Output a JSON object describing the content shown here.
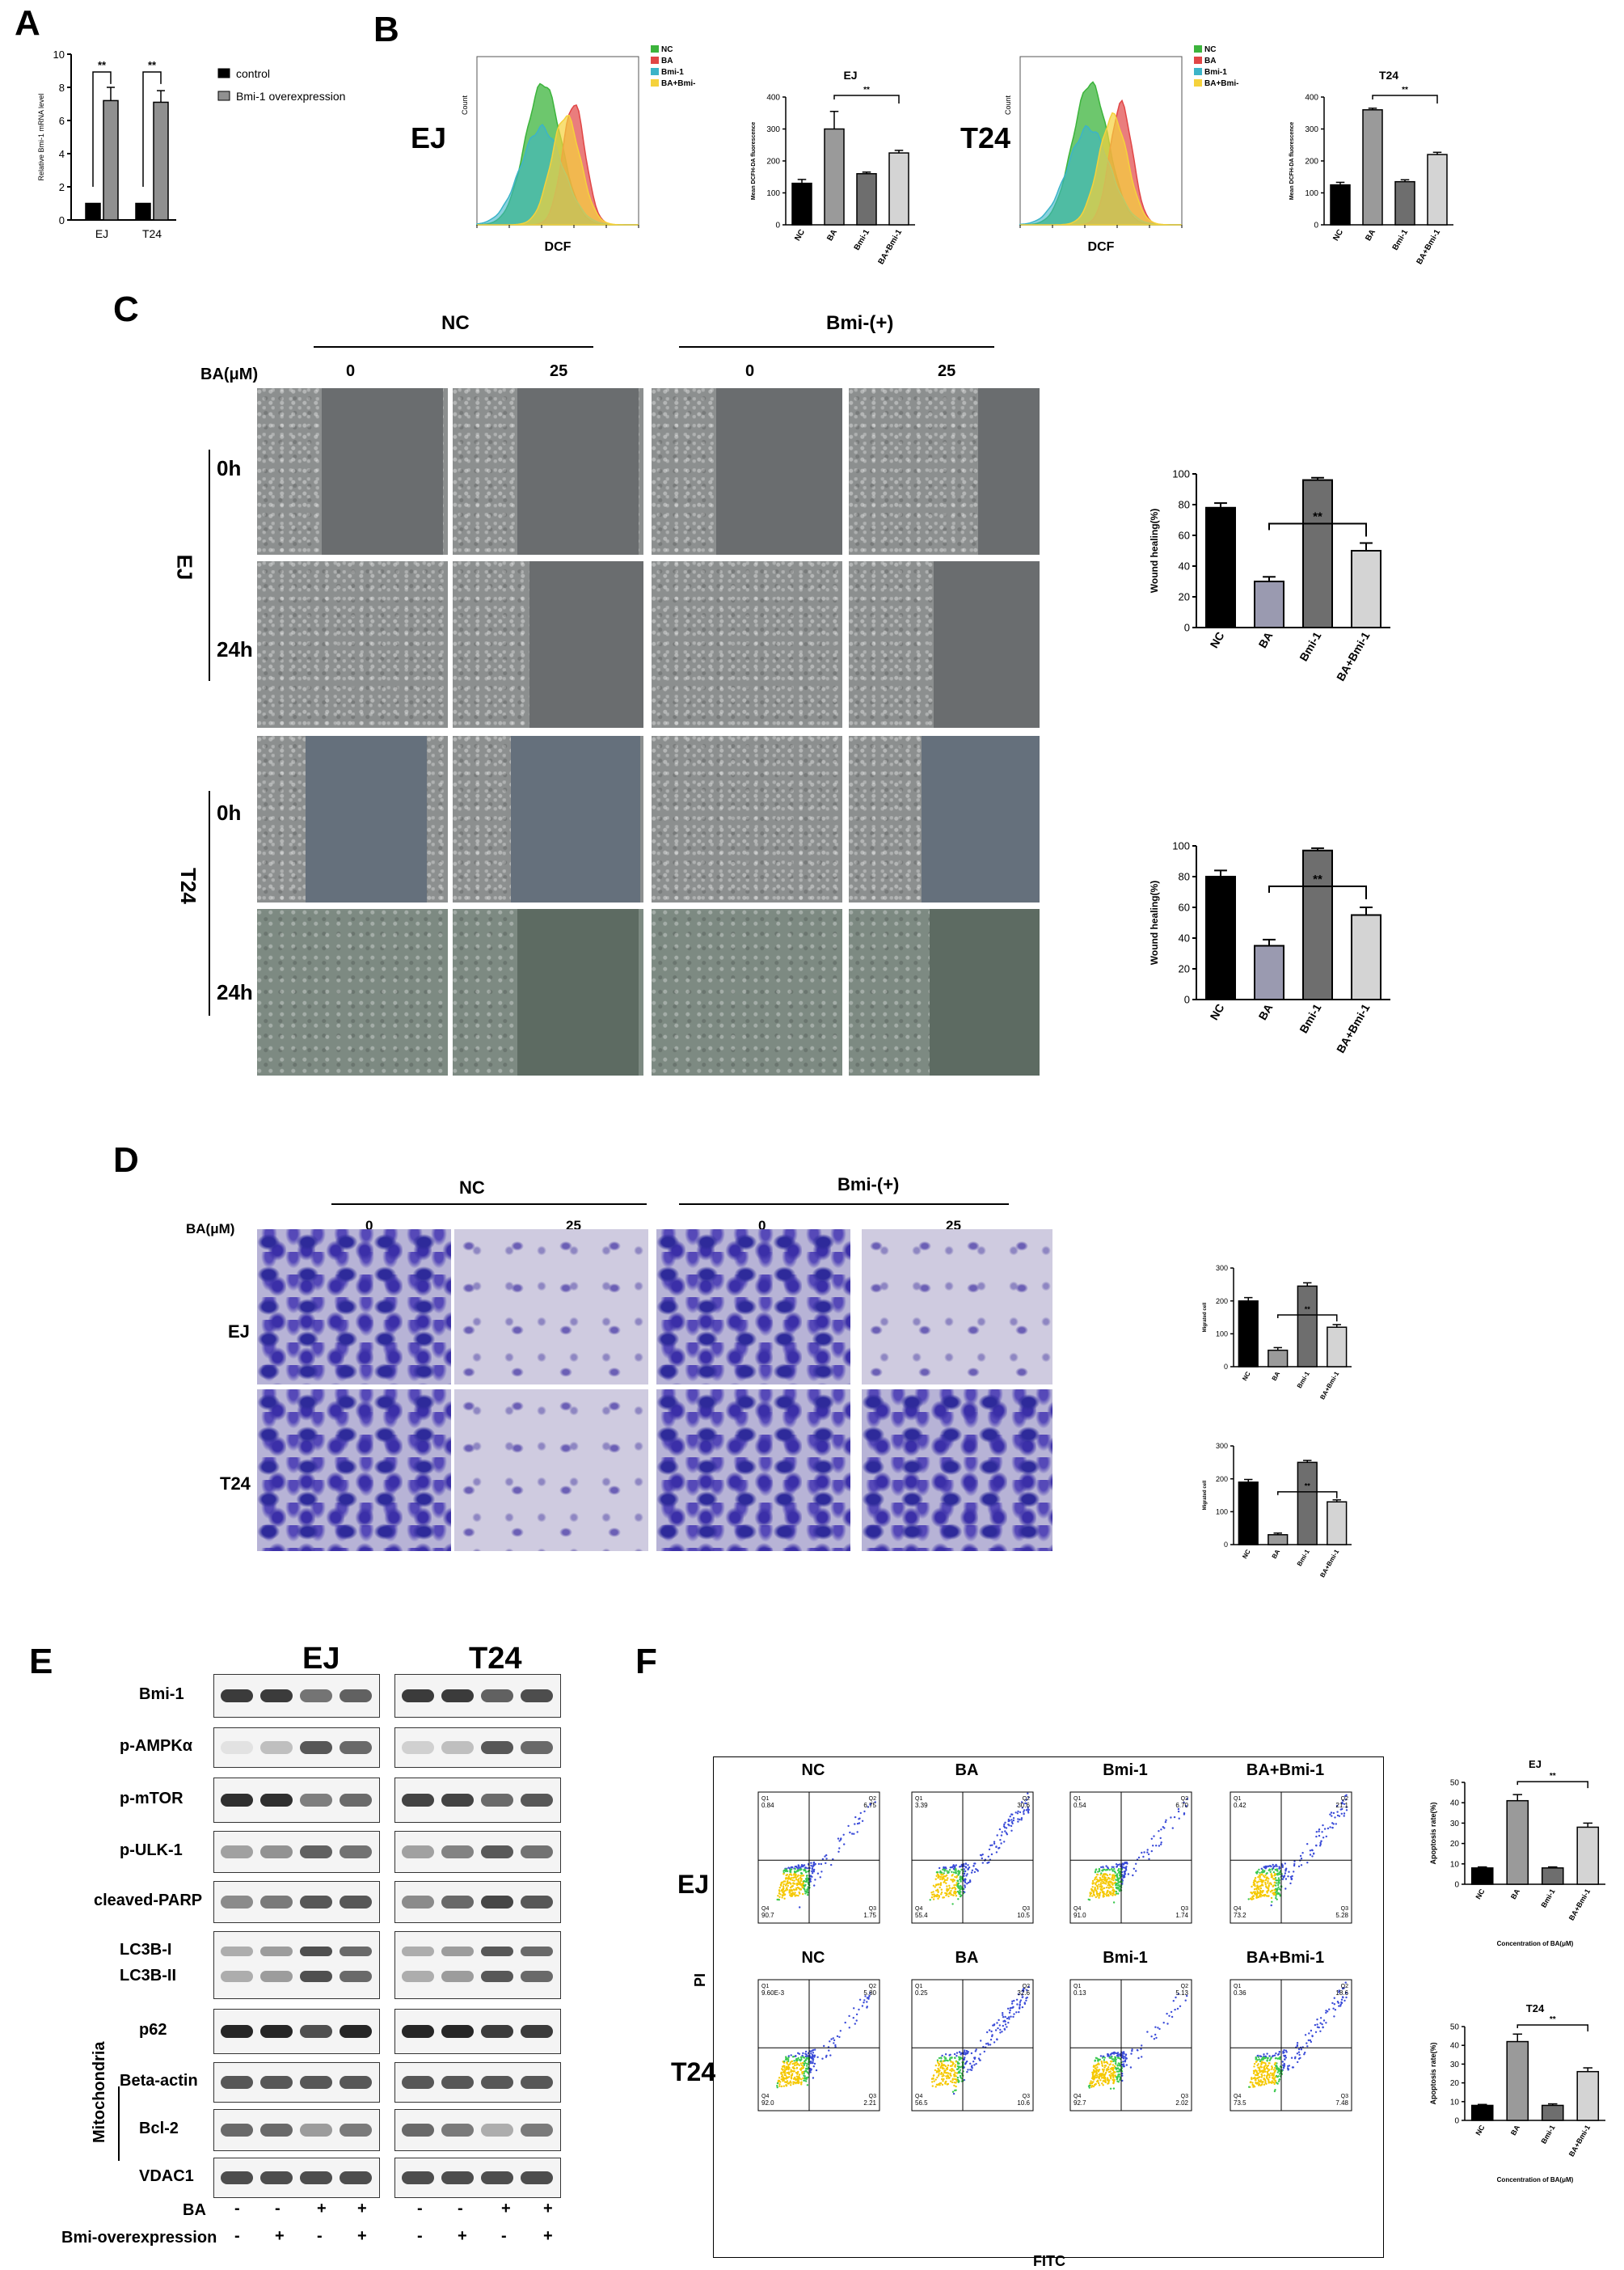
{
  "panels": {
    "A": "A",
    "B": "B",
    "C": "C",
    "D": "D",
    "E": "E",
    "F": "F"
  },
  "panelA": {
    "ylabel": "Relative Bmi-1 mRNA level",
    "legend": [
      "control",
      "Bmi-1 overexpression"
    ],
    "sig": "**"
  },
  "panelB": {
    "ej_label": "EJ",
    "t24_label": "T24",
    "hist_legend": [
      "NC",
      "BA",
      "Bmi-1",
      "BA+Bmi-1"
    ],
    "hist_xlabel": "DCF",
    "hist_ylabel": "Count",
    "bar_ylabel": "Mean DCFH-DA fluorescence",
    "ej_title": "EJ",
    "t24_title": "T24",
    "sig": "**"
  },
  "panelC": {
    "group_nc": "NC",
    "group_bmi": "Bmi-(+)",
    "ba_label": "BA(μM)",
    "conc": [
      "0",
      "25",
      "0",
      "25"
    ],
    "cell_ej": "EJ",
    "cell_t24": "T24",
    "times": [
      "0h",
      "24h"
    ],
    "bar_ylabel": "Wound healing(%)",
    "sig": "**"
  },
  "panelD": {
    "group_nc": "NC",
    "group_bmi": "Bmi-(+)",
    "ba_label": "BA(μM)",
    "conc": [
      "0",
      "25",
      "0",
      "25"
    ],
    "cell_ej": "EJ",
    "cell_t24": "T24",
    "bar_ylabel": "Migrated cell",
    "sig": "**"
  },
  "panelE": {
    "col_ej": "EJ",
    "col_t24": "T24",
    "proteins": [
      "Bmi-1",
      "p-AMPKα",
      "p-mTOR",
      "p-ULK-1",
      "cleaved-PARP",
      "LC3B-I",
      "LC3B-II",
      "p62",
      "Beta-actin",
      "Bcl-2",
      "VDAC1"
    ],
    "mito_label": "Mitochondria",
    "row_ba": "BA",
    "row_bmi": "Bmi-overexpression",
    "ba_signs": [
      "-",
      "-",
      "+",
      "+",
      "-",
      "-",
      "+",
      "+"
    ],
    "bmi_signs": [
      "-",
      "+",
      "-",
      "+",
      "-",
      "+",
      "-",
      "+"
    ]
  },
  "panelF": {
    "cols": [
      "NC",
      "BA",
      "Bmi-1",
      "BA+Bmi-1"
    ],
    "row_ej": "EJ",
    "row_t24": "T24",
    "ylabel": "PI",
    "xlabel": "FITC",
    "ej_quads": [
      {
        "q1": "0.84",
        "q2": "6.75",
        "q3": "1.75",
        "q4": "90.7"
      },
      {
        "q1": "3.39",
        "q2": "30.6",
        "q3": "10.5",
        "q4": "55.4"
      },
      {
        "q1": "0.54",
        "q2": "6.70",
        "q3": "1.74",
        "q4": "91.0"
      },
      {
        "q1": "0.42",
        "q2": "21.1",
        "q3": "5.28",
        "q4": "73.2"
      }
    ],
    "t24_quads": [
      {
        "q1": "9.60E-3",
        "q2": "5.80",
        "q3": "2.21",
        "q4": "92.0"
      },
      {
        "q1": "0.25",
        "q2": "32.6",
        "q3": "10.6",
        "q4": "56.5"
      },
      {
        "q1": "0.13",
        "q2": "5.13",
        "q3": "2.02",
        "q4": "92.7"
      },
      {
        "q1": "0.36",
        "q2": "18.6",
        "q3": "7.48",
        "q4": "73.5"
      }
    ],
    "bar_ylabel": "Apoptosis rate(%)",
    "bar_xlabel": "Concentration of BA(μM)",
    "ej_title": "EJ",
    "t24_title": "T24",
    "sig": "**"
  },
  "chart_data": [
    {
      "id": "A",
      "type": "bar",
      "categories": [
        "EJ",
        "T24"
      ],
      "series": [
        {
          "name": "control",
          "values": [
            1,
            1
          ]
        },
        {
          "name": "Bmi-1 overexpression",
          "values": [
            7.2,
            7.1
          ]
        }
      ],
      "errors": [
        [
          0,
          0
        ],
        [
          0.8,
          0.7
        ]
      ],
      "ylabel": "Relative Bmi-1 mRNA level",
      "ylim": [
        0,
        10
      ],
      "yticks": [
        0,
        2,
        4,
        6,
        8,
        10
      ],
      "colors": [
        "#000000",
        "#909090"
      ]
    },
    {
      "id": "B-EJ",
      "type": "bar",
      "title": "EJ",
      "categories": [
        "NC",
        "BA",
        "Bmi-1",
        "BA+Bmi-1"
      ],
      "values": [
        130,
        300,
        160,
        225
      ],
      "errors": [
        12,
        55,
        5,
        8
      ],
      "ylabel": "Mean DCFH-DA fluorescence",
      "ylim": [
        0,
        400
      ],
      "yticks": [
        0,
        100,
        200,
        300,
        400
      ],
      "colors": [
        "#000000",
        "#9a9a9a",
        "#6e6e6e",
        "#d4d4d4"
      ]
    },
    {
      "id": "B-T24",
      "type": "bar",
      "title": "T24",
      "categories": [
        "NC",
        "BA",
        "Bmi-1",
        "BA+Bmi-1"
      ],
      "values": [
        125,
        360,
        135,
        220
      ],
      "errors": [
        8,
        5,
        6,
        7
      ],
      "ylabel": "Mean DCFH-DA fluorescence",
      "ylim": [
        0,
        400
      ],
      "yticks": [
        0,
        100,
        200,
        300,
        400
      ],
      "colors": [
        "#000000",
        "#9a9a9a",
        "#6e6e6e",
        "#d4d4d4"
      ]
    },
    {
      "id": "C-EJ",
      "type": "bar",
      "categories": [
        "NC",
        "BA",
        "Bmi-1",
        "BA+Bmi-1"
      ],
      "values": [
        78,
        30,
        96,
        50
      ],
      "errors": [
        3,
        3,
        1.5,
        5
      ],
      "ylabel": "Wound healing(%)",
      "ylim": [
        0,
        100
      ],
      "yticks": [
        0,
        20,
        40,
        60,
        80,
        100
      ],
      "colors": [
        "#000000",
        "#9a9ab0",
        "#6e6e6e",
        "#d4d4d4"
      ]
    },
    {
      "id": "C-T24",
      "type": "bar",
      "categories": [
        "NC",
        "BA",
        "Bmi-1",
        "BA+Bmi-1"
      ],
      "values": [
        80,
        35,
        97,
        55
      ],
      "errors": [
        4,
        4,
        1.5,
        5
      ],
      "ylabel": "Wound healing(%)",
      "ylim": [
        0,
        100
      ],
      "yticks": [
        0,
        20,
        40,
        60,
        80,
        100
      ],
      "colors": [
        "#000000",
        "#9a9ab0",
        "#6e6e6e",
        "#d4d4d4"
      ]
    },
    {
      "id": "D-EJ",
      "type": "bar",
      "categories": [
        "NC",
        "BA",
        "Bmi-1",
        "BA+Bmi-1"
      ],
      "values": [
        200,
        50,
        245,
        120
      ],
      "errors": [
        10,
        8,
        10,
        8
      ],
      "ylabel": "Migrated cell",
      "ylim": [
        0,
        300
      ],
      "yticks": [
        0,
        100,
        200,
        300
      ],
      "colors": [
        "#000000",
        "#9a9a9a",
        "#6e6e6e",
        "#d4d4d4"
      ]
    },
    {
      "id": "D-T24",
      "type": "bar",
      "categories": [
        "NC",
        "BA",
        "Bmi-1",
        "BA+Bmi-1"
      ],
      "values": [
        190,
        30,
        250,
        130
      ],
      "errors": [
        8,
        5,
        6,
        6
      ],
      "ylabel": "Migrated cell",
      "ylim": [
        0,
        300
      ],
      "yticks": [
        0,
        100,
        200,
        300
      ],
      "colors": [
        "#000000",
        "#9a9a9a",
        "#6e6e6e",
        "#d4d4d4"
      ]
    },
    {
      "id": "F-EJ",
      "type": "bar",
      "title": "EJ",
      "categories": [
        "NC",
        "BA",
        "Bmi-1",
        "BA+Bmi-1"
      ],
      "values": [
        8,
        41,
        8,
        28
      ],
      "errors": [
        0.5,
        3,
        0.5,
        2
      ],
      "ylabel": "Apoptosis rate(%)",
      "xlabel": "Concentration of BA(μM)",
      "ylim": [
        0,
        50
      ],
      "yticks": [
        0,
        10,
        20,
        30,
        40,
        50
      ],
      "colors": [
        "#000000",
        "#9a9a9a",
        "#6e6e6e",
        "#d4d4d4"
      ]
    },
    {
      "id": "F-T24",
      "type": "bar",
      "title": "T24",
      "categories": [
        "NC",
        "BA",
        "Bmi-1",
        "BA+Bmi-1"
      ],
      "values": [
        8,
        42,
        8,
        26
      ],
      "errors": [
        0.5,
        4,
        0.8,
        2
      ],
      "ylabel": "Apoptosis rate(%)",
      "xlabel": "Concentration of BA(μM)",
      "ylim": [
        0,
        50
      ],
      "yticks": [
        0,
        10,
        20,
        30,
        40,
        50
      ],
      "colors": [
        "#000000",
        "#9a9a9a",
        "#6e6e6e",
        "#d4d4d4"
      ]
    }
  ]
}
